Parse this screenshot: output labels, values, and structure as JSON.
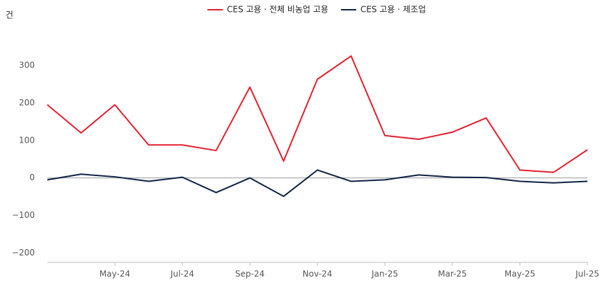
{
  "chart_data": {
    "type": "line",
    "unit_label": "건",
    "categories": [
      null,
      null,
      "May-24",
      null,
      "Jul-24",
      null,
      "Sep-24",
      null,
      "Nov-24",
      null,
      "Jan-25",
      null,
      "Mar-25",
      null,
      "May-25",
      null,
      "Jul-25"
    ],
    "series": [
      {
        "name": "CES 고용 · 전체 비농업 고용",
        "color": "#e31e2d",
        "values": [
          195,
          120,
          195,
          88,
          88,
          73,
          242,
          45,
          263,
          325,
          113,
          103,
          122,
          160,
          21,
          15,
          75
        ]
      },
      {
        "name": "CES 고용 · 제조업",
        "color": "#0d2145",
        "values": [
          -5,
          10,
          3,
          -9,
          2,
          -39,
          0,
          -49,
          21,
          -9,
          -5,
          8,
          2,
          1,
          -9,
          -13,
          -9
        ]
      }
    ],
    "ylim": [
      -225,
      400
    ],
    "yticks": [
      {
        "value": -200,
        "label": "−200"
      },
      {
        "value": -100,
        "label": "−100"
      },
      0,
      100,
      200,
      300
    ],
    "zero_line": true,
    "grid": false,
    "legend": "top"
  }
}
